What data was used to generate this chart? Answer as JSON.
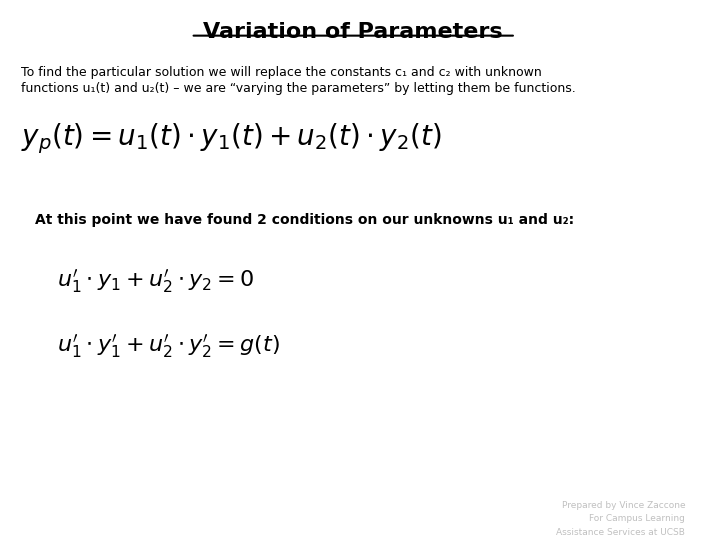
{
  "title": "Variation of Parameters",
  "background_color": "#ffffff",
  "text_color": "#000000",
  "footer_color": "#c0c0c0",
  "intro_line1": "To find the particular solution we will replace the constants c₁ and c₂ with unknown",
  "intro_line2": "functions u₁(t) and u₂(t) – we are “varying the parameters” by letting them be functions.",
  "formula_main": "$y_p(t) = u_1(t) \\cdot y_1(t) + u_2(t) \\cdot y_2(t)$",
  "conditions_text": "At this point we have found 2 conditions on our unknowns u₁ and u₂:",
  "eq1": "$u_1' \\cdot y_1 + u_2' \\cdot y_2 = 0$",
  "eq2": "$u_1' \\cdot y_1' + u_2' \\cdot y_2' = g(t)$",
  "footer_line1": "Prepared by Vince Zaccone",
  "footer_line2": "For Campus Learning",
  "footer_line3": "Assistance Services at UCSB"
}
